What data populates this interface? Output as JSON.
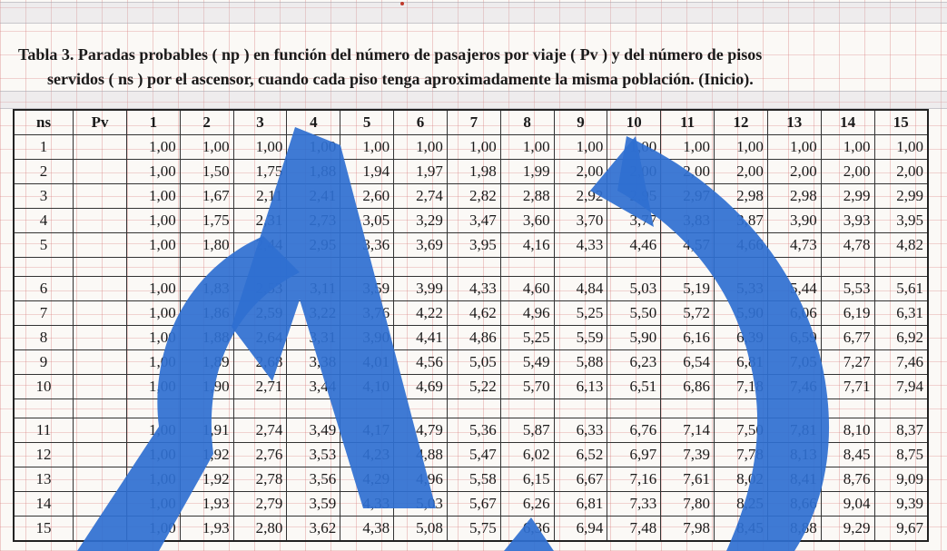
{
  "caption": {
    "line1": "Tabla 3.  Paradas  probables  ( np )  en función del número de pasajeros por viaje  ( Pv )  y del número de pisos",
    "line2": "servidos  ( ns )  por el ascensor, cuando cada piso tenga aproximadamente la misma población.  (Inicio)."
  },
  "table": {
    "headers": [
      "ns",
      "Pv",
      "1",
      "2",
      "3",
      "4",
      "5",
      "6",
      "7",
      "8",
      "9",
      "10",
      "11",
      "12",
      "13",
      "14",
      "15"
    ],
    "groups": [
      [
        {
          "ns": "1",
          "values": [
            "1,00",
            "1,00",
            "1,00",
            "1,00",
            "1,00",
            "1,00",
            "1,00",
            "1,00",
            "1,00",
            "1,00",
            "1,00",
            "1,00",
            "1,00",
            "1,00",
            "1,00"
          ]
        },
        {
          "ns": "2",
          "values": [
            "1,00",
            "1,50",
            "1,75",
            "1,88",
            "1,94",
            "1,97",
            "1,98",
            "1,99",
            "2,00",
            "2,00",
            "2,00",
            "2,00",
            "2,00",
            "2,00",
            "2,00"
          ]
        },
        {
          "ns": "3",
          "values": [
            "1,00",
            "1,67",
            "2,11",
            "2,41",
            "2,60",
            "2,74",
            "2,82",
            "2,88",
            "2,92",
            "2,95",
            "2,97",
            "2,98",
            "2,98",
            "2,99",
            "2,99"
          ]
        },
        {
          "ns": "4",
          "values": [
            "1,00",
            "1,75",
            "2,31",
            "2,73",
            "3,05",
            "3,29",
            "3,47",
            "3,60",
            "3,70",
            "3,77",
            "3,83",
            "3,87",
            "3,90",
            "3,93",
            "3,95"
          ]
        },
        {
          "ns": "5",
          "values": [
            "1,00",
            "1,80",
            "2,44",
            "2,95",
            "3,36",
            "3,69",
            "3,95",
            "4,16",
            "4,33",
            "4,46",
            "4,57",
            "4,66",
            "4,73",
            "4,78",
            "4,82"
          ]
        }
      ],
      [
        {
          "ns": "6",
          "values": [
            "1,00",
            "1,83",
            "2,53",
            "3,11",
            "3,59",
            "3,99",
            "4,33",
            "4,60",
            "4,84",
            "5,03",
            "5,19",
            "5,33",
            "5,44",
            "5,53",
            "5,61"
          ]
        },
        {
          "ns": "7",
          "values": [
            "1,00",
            "1,86",
            "2,59",
            "3,22",
            "3,76",
            "4,22",
            "4,62",
            "4,96",
            "5,25",
            "5,50",
            "5,72",
            "5,90",
            "6,06",
            "6,19",
            "6,31"
          ]
        },
        {
          "ns": "8",
          "values": [
            "1,00",
            "1,88",
            "2,64",
            "3,31",
            "3,90",
            "4,41",
            "4,86",
            "5,25",
            "5,59",
            "5,90",
            "6,16",
            "6,39",
            "6,59",
            "6,77",
            "6,92"
          ]
        },
        {
          "ns": "9",
          "values": [
            "1,00",
            "1,89",
            "2,68",
            "3,38",
            "4,01",
            "4,56",
            "5,05",
            "5,49",
            "5,88",
            "6,23",
            "6,54",
            "6,81",
            "7,05",
            "7,27",
            "7,46"
          ]
        },
        {
          "ns": "10",
          "values": [
            "1,00",
            "1,90",
            "2,71",
            "3,44",
            "4,10",
            "4,69",
            "5,22",
            "5,70",
            "6,13",
            "6,51",
            "6,86",
            "7,18",
            "7,46",
            "7,71",
            "7,94"
          ]
        }
      ],
      [
        {
          "ns": "11",
          "values": [
            "1,00",
            "1,91",
            "2,74",
            "3,49",
            "4,17",
            "4,79",
            "5,36",
            "5,87",
            "6,33",
            "6,76",
            "7,14",
            "7,50",
            "7,81",
            "8,10",
            "8,37"
          ]
        },
        {
          "ns": "12",
          "values": [
            "1,00",
            "1,92",
            "2,76",
            "3,53",
            "4,23",
            "4,88",
            "5,47",
            "6,02",
            "6,52",
            "6,97",
            "7,39",
            "7,78",
            "8,13",
            "8,45",
            "8,75"
          ]
        },
        {
          "ns": "13",
          "values": [
            "1,00",
            "1,92",
            "2,78",
            "3,56",
            "4,29",
            "4,96",
            "5,58",
            "6,15",
            "6,67",
            "7,16",
            "7,61",
            "8,02",
            "8,41",
            "8,76",
            "9,09"
          ]
        },
        {
          "ns": "14",
          "values": [
            "1,00",
            "1,93",
            "2,79",
            "3,59",
            "4,33",
            "5,03",
            "5,67",
            "6,26",
            "6,81",
            "7,33",
            "7,80",
            "8,25",
            "8,66",
            "9,04",
            "9,39"
          ]
        },
        {
          "ns": "15",
          "values": [
            "1,00",
            "1,93",
            "2,80",
            "3,62",
            "4,38",
            "5,08",
            "5,75",
            "6,36",
            "6,94",
            "7,48",
            "7,98",
            "8,45",
            "8,88",
            "9,29",
            "9,67"
          ]
        }
      ]
    ]
  },
  "colors": {
    "watermark": "#2f6fd0",
    "grid_lines": "#d67878"
  },
  "icons": {
    "watermark": "recycle-arrow-watermark"
  }
}
